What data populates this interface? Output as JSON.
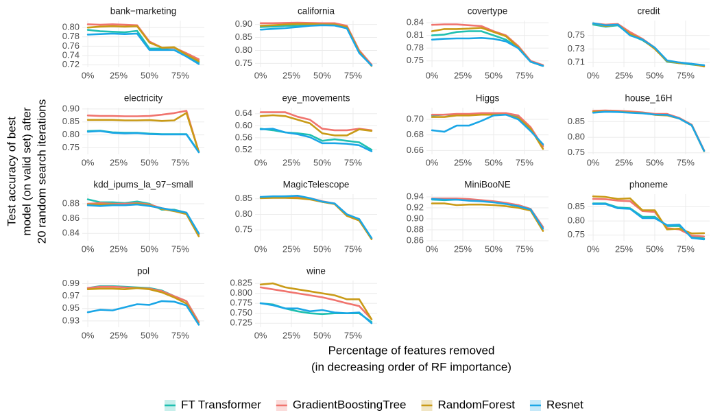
{
  "chart_data": {
    "type": "line",
    "xlabel": [
      "Percentage of features removed",
      "(in decreasing order of RF importance)"
    ],
    "ylabel": [
      "Test accuracy of best",
      "model (on valid set) after",
      "20 random search iterations"
    ],
    "x": [
      0,
      10,
      20,
      30,
      40,
      50,
      60,
      70,
      80,
      90
    ],
    "xlim": [
      -4.5,
      94.5
    ],
    "xticks": [
      {
        "value": 0,
        "label": "0%"
      },
      {
        "value": 25,
        "label": "25%"
      },
      {
        "value": 50,
        "label": "50%"
      },
      {
        "value": 75,
        "label": "75%"
      }
    ],
    "grid": true,
    "legend": "bottom",
    "series": [
      {
        "name": "FT Transformer",
        "color": "#1fbfb0"
      },
      {
        "name": "GradientBoostingTree",
        "color": "#f0746e"
      },
      {
        "name": "RandomForest",
        "color": "#c99a16"
      },
      {
        "name": "Resnet",
        "color": "#1aa6e6"
      }
    ],
    "facets": [
      {
        "title": "bank−marketing",
        "ylim": [
          0.715,
          0.815
        ],
        "yticks": [
          0.72,
          0.74,
          0.76,
          0.78,
          {
            "value": 0.8,
            "label": "0.80"
          }
        ],
        "values": [
          [
            0.795,
            0.792,
            0.791,
            0.79,
            0.793,
            0.755,
            0.755,
            0.757,
            0.742,
            0.725
          ],
          [
            0.807,
            0.806,
            0.807,
            0.806,
            0.805,
            0.77,
            0.757,
            0.757,
            0.745,
            0.732
          ],
          [
            0.8,
            0.802,
            0.803,
            0.802,
            0.803,
            0.768,
            0.757,
            0.758,
            0.742,
            0.728
          ],
          [
            0.785,
            0.786,
            0.787,
            0.786,
            0.787,
            0.752,
            0.752,
            0.752,
            0.738,
            0.722
          ]
        ]
      },
      {
        "title": "california",
        "ylim": [
          0.735,
          0.915
        ],
        "yticks": [
          0.75,
          {
            "value": 0.8,
            "label": "0.80"
          },
          0.85,
          {
            "value": 0.9,
            "label": "0.90"
          }
        ],
        "values": [
          [
            0.89,
            0.892,
            0.895,
            0.895,
            0.898,
            0.9,
            0.9,
            0.89,
            0.798,
            0.745
          ],
          [
            0.905,
            0.905,
            0.906,
            0.907,
            0.906,
            0.905,
            0.905,
            0.895,
            0.8,
            0.745
          ],
          [
            0.895,
            0.897,
            0.9,
            0.902,
            0.902,
            0.9,
            0.9,
            0.89,
            0.795,
            0.74
          ],
          [
            0.88,
            0.883,
            0.886,
            0.89,
            0.895,
            0.897,
            0.896,
            0.885,
            0.79,
            0.742
          ]
        ]
      },
      {
        "title": "covertype",
        "ylim": [
          0.735,
          0.845
        ],
        "yticks": [
          0.75,
          0.78,
          0.81,
          0.84
        ],
        "values": [
          [
            0.81,
            0.812,
            0.818,
            0.82,
            0.82,
            0.81,
            0.8,
            0.78,
            0.748,
            0.738
          ],
          [
            0.835,
            0.836,
            0.836,
            0.834,
            0.832,
            0.82,
            0.81,
            0.785,
            0.75,
            0.74
          ],
          [
            0.82,
            0.825,
            0.825,
            0.826,
            0.828,
            0.818,
            0.808,
            0.782,
            0.748,
            0.738
          ],
          [
            0.8,
            0.802,
            0.803,
            0.803,
            0.804,
            0.802,
            0.796,
            0.78,
            0.748,
            0.738
          ]
        ]
      },
      {
        "title": "credit",
        "ylim": [
          0.703,
          0.772
        ],
        "yticks": [
          0.71,
          0.73,
          0.75
        ],
        "values": [
          [
            0.766,
            0.763,
            0.765,
            0.751,
            0.743,
            0.731,
            0.711,
            0.709,
            0.707,
            0.705
          ],
          [
            0.768,
            0.766,
            0.767,
            0.755,
            0.745,
            0.732,
            0.712,
            0.71,
            0.708,
            0.705
          ],
          [
            0.768,
            0.764,
            0.766,
            0.752,
            0.744,
            0.73,
            0.712,
            0.709,
            0.708,
            0.704
          ],
          [
            0.768,
            0.765,
            0.766,
            0.75,
            0.744,
            0.732,
            0.713,
            0.71,
            0.708,
            0.706
          ]
        ]
      },
      {
        "title": "electricity",
        "ylim": [
          0.725,
          0.905
        ],
        "yticks": [
          0.75,
          {
            "value": 0.8,
            "label": "0.80"
          },
          0.85,
          {
            "value": 0.9,
            "label": "0.90"
          }
        ],
        "values": [
          [
            0.815,
            0.816,
            0.81,
            0.808,
            0.808,
            0.805,
            0.803,
            0.803,
            0.803,
            0.735
          ],
          [
            0.875,
            0.873,
            0.873,
            0.872,
            0.872,
            0.873,
            0.878,
            0.884,
            0.893,
            0.735
          ],
          [
            0.858,
            0.858,
            0.858,
            0.856,
            0.856,
            0.857,
            0.854,
            0.856,
            0.885,
            0.735
          ],
          [
            0.812,
            0.815,
            0.808,
            0.806,
            0.807,
            0.803,
            0.802,
            0.802,
            0.802,
            0.733
          ]
        ]
      },
      {
        "title": "eye_movements",
        "ylim": [
          0.505,
          0.66
        ],
        "yticks": [
          0.52,
          0.56,
          {
            "value": 0.6,
            "label": "0.60"
          },
          0.64
        ],
        "values": [
          [
            0.59,
            0.585,
            0.578,
            0.575,
            0.57,
            0.55,
            0.555,
            0.55,
            0.545,
            0.52
          ],
          [
            0.645,
            0.645,
            0.645,
            0.63,
            0.62,
            0.59,
            0.585,
            0.585,
            0.59,
            0.585
          ],
          [
            0.632,
            0.635,
            0.632,
            0.62,
            0.608,
            0.575,
            0.568,
            0.568,
            0.588,
            0.583
          ],
          [
            0.588,
            0.59,
            0.578,
            0.572,
            0.562,
            0.542,
            0.542,
            0.54,
            0.535,
            0.515
          ]
        ]
      },
      {
        "title": "Higgs",
        "ylim": [
          0.655,
          0.715
        ],
        "yticks": [
          0.66,
          0.68,
          {
            "value": 0.7,
            "label": "0.70"
          }
        ],
        "values": [
          [
            0.705,
            0.706,
            0.706,
            0.706,
            0.706,
            0.707,
            0.707,
            0.703,
            0.688,
            0.666
          ],
          [
            0.706,
            0.706,
            0.707,
            0.707,
            0.708,
            0.708,
            0.708,
            0.705,
            0.69,
            0.665
          ],
          [
            0.703,
            0.703,
            0.705,
            0.705,
            0.706,
            0.706,
            0.706,
            0.702,
            0.688,
            0.662
          ],
          [
            0.686,
            0.684,
            0.692,
            0.692,
            0.698,
            0.705,
            0.706,
            0.7,
            0.685,
            0.668
          ]
        ]
      },
      {
        "title": "house_16H",
        "ylim": [
          0.745,
          0.895
        ],
        "yticks": [
          0.75,
          {
            "value": 0.8,
            "label": "0.80"
          },
          0.85
        ],
        "values": [
          [
            0.884,
            0.885,
            0.883,
            0.882,
            0.879,
            0.874,
            0.874,
            0.861,
            0.84,
            0.757
          ],
          [
            0.885,
            0.886,
            0.885,
            0.883,
            0.88,
            0.875,
            0.875,
            0.862,
            0.84,
            0.758
          ],
          [
            0.882,
            0.883,
            0.882,
            0.88,
            0.878,
            0.872,
            0.87,
            0.86,
            0.838,
            0.755
          ],
          [
            0.879,
            0.882,
            0.881,
            0.879,
            0.877,
            0.873,
            0.872,
            0.86,
            0.838,
            0.756
          ]
        ]
      },
      {
        "title": "kdd_ipums_la_97−small",
        "ylim": [
          0.83,
          0.893
        ],
        "yticks": [
          0.84,
          0.86,
          0.88
        ],
        "values": [
          [
            0.886,
            0.882,
            0.882,
            0.881,
            0.883,
            0.88,
            0.872,
            0.872,
            0.868,
            0.839
          ],
          [
            0.88,
            0.881,
            0.88,
            0.88,
            0.881,
            0.879,
            0.874,
            0.871,
            0.868,
            0.838
          ],
          [
            0.879,
            0.879,
            0.879,
            0.878,
            0.88,
            0.878,
            0.873,
            0.87,
            0.866,
            0.836
          ],
          [
            0.878,
            0.877,
            0.878,
            0.878,
            0.879,
            0.877,
            0.874,
            0.871,
            0.868,
            0.84
          ]
        ]
      },
      {
        "title": "MagicTelescope",
        "ylim": [
          0.715,
          0.865
        ],
        "yticks": [
          0.75,
          {
            "value": 0.8,
            "label": "0.80"
          },
          0.85
        ],
        "values": [
          [
            0.855,
            0.857,
            0.858,
            0.858,
            0.85,
            0.84,
            0.834,
            0.798,
            0.782,
            0.723
          ],
          [
            0.855,
            0.856,
            0.857,
            0.855,
            0.852,
            0.842,
            0.835,
            0.8,
            0.782,
            0.722
          ],
          [
            0.852,
            0.853,
            0.853,
            0.852,
            0.848,
            0.84,
            0.833,
            0.795,
            0.78,
            0.72
          ],
          [
            0.856,
            0.858,
            0.858,
            0.86,
            0.852,
            0.841,
            0.835,
            0.8,
            0.785,
            0.724
          ]
        ]
      },
      {
        "title": "MiniBooNE",
        "ylim": [
          0.86,
          0.945
        ],
        "yticks": [
          0.86,
          0.88,
          {
            "value": 0.9,
            "label": "0.90"
          },
          0.92,
          0.94
        ],
        "values": [
          [
            0.935,
            0.934,
            0.935,
            0.934,
            0.933,
            0.931,
            0.928,
            0.925,
            0.918,
            0.885
          ],
          [
            0.937,
            0.937,
            0.937,
            0.936,
            0.934,
            0.932,
            0.929,
            0.925,
            0.918,
            0.885
          ],
          [
            0.928,
            0.928,
            0.925,
            0.926,
            0.926,
            0.925,
            0.923,
            0.92,
            0.915,
            0.878
          ],
          [
            0.936,
            0.935,
            0.935,
            0.933,
            0.932,
            0.93,
            0.927,
            0.923,
            0.917,
            0.882
          ]
        ]
      },
      {
        "title": "phoneme",
        "ylim": [
          0.73,
          0.895
        ],
        "yticks": [
          0.75,
          {
            "value": 0.8,
            "label": "0.80"
          },
          0.85
        ],
        "values": [
          [
            0.862,
            0.862,
            0.848,
            0.845,
            0.815,
            0.815,
            0.782,
            0.782,
            0.745,
            0.738
          ],
          [
            0.878,
            0.877,
            0.872,
            0.87,
            0.835,
            0.832,
            0.775,
            0.77,
            0.748,
            0.745
          ],
          [
            0.887,
            0.885,
            0.878,
            0.88,
            0.838,
            0.838,
            0.77,
            0.773,
            0.756,
            0.757
          ],
          [
            0.86,
            0.86,
            0.845,
            0.843,
            0.81,
            0.81,
            0.785,
            0.787,
            0.74,
            0.735
          ]
        ]
      },
      {
        "title": "pol",
        "ylim": [
          0.92,
          0.995
        ],
        "yticks": [
          0.93,
          0.95,
          0.97,
          0.99
        ],
        "values": [
          [
            0.983,
            0.986,
            0.986,
            0.985,
            0.984,
            0.983,
            0.979,
            0.97,
            0.962,
            0.928
          ],
          [
            0.983,
            0.985,
            0.985,
            0.984,
            0.983,
            0.982,
            0.978,
            0.97,
            0.962,
            0.928
          ],
          [
            0.981,
            0.982,
            0.982,
            0.981,
            0.983,
            0.981,
            0.976,
            0.968,
            0.958,
            0.925
          ],
          [
            0.944,
            0.948,
            0.947,
            0.952,
            0.957,
            0.956,
            0.962,
            0.961,
            0.955,
            0.924
          ]
        ]
      },
      {
        "title": "wine",
        "ylim": [
          0.715,
          0.832
        ],
        "yticks": [
          0.725,
          {
            "value": 0.75,
            "label": "0.750"
          },
          0.775,
          {
            "value": 0.8,
            "label": "0.800"
          },
          0.825
        ],
        "values": [
          [
            0.775,
            0.772,
            0.762,
            0.755,
            0.75,
            0.748,
            0.75,
            0.75,
            0.75,
            0.728
          ],
          [
            0.815,
            0.81,
            0.805,
            0.8,
            0.795,
            0.79,
            0.783,
            0.775,
            0.768,
            0.735
          ],
          [
            0.822,
            0.825,
            0.815,
            0.81,
            0.805,
            0.8,
            0.795,
            0.785,
            0.785,
            0.735
          ],
          [
            0.775,
            0.77,
            0.762,
            0.762,
            0.755,
            0.758,
            0.752,
            0.75,
            0.752,
            0.725
          ]
        ]
      }
    ]
  }
}
